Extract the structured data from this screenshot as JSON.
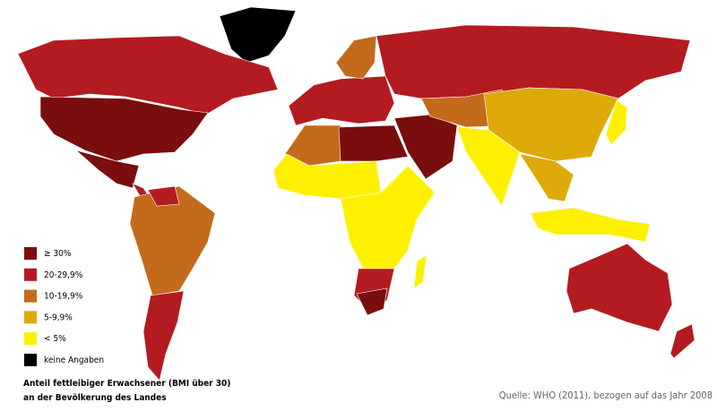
{
  "legend": {
    "items": [
      {
        "label": "≥ 30%",
        "color": "#7a0d0d"
      },
      {
        "label": "20-29,9%",
        "color": "#b31b20"
      },
      {
        "label": "10-19,9%",
        "color": "#c46a1c"
      },
      {
        "label": "5-9,9%",
        "color": "#ddaa0a"
      },
      {
        "label": "< 5%",
        "color": "#fff000"
      },
      {
        "label": "keine Angaben",
        "color": "#000000"
      }
    ]
  },
  "caption": {
    "lines": [
      "Anteil fettleibiger Erwachsener (BMI über 30)",
      "an der Bevölkerung des Landes"
    ]
  },
  "source": "Quelle: WHO (2011), bezogen auf das Jahr 2008"
}
